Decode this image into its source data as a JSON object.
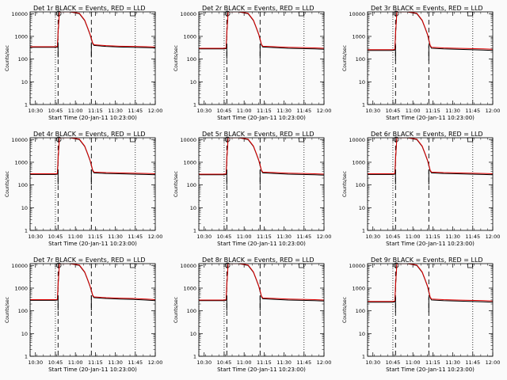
{
  "figure": {
    "xlabel": "Start Time (20-Jan-11 10:23:00)",
    "ylabel": "Counts/sec"
  },
  "chart_data": {
    "type": "line",
    "layout": {
      "rows": 3,
      "cols": 3
    },
    "title_suffix": " BLACK = Events, RED = LLD",
    "xlabel": "Start Time (20-Jan-11 10:23:00)",
    "ylabel": "Counts/sec",
    "x_unit": "minutes after 10:23:00",
    "xlim": [
      3,
      97
    ],
    "xticks": [
      7,
      22,
      37,
      52,
      67,
      82,
      97
    ],
    "xtick_labels": [
      "10:30",
      "10:45",
      "11:00",
      "11:15",
      "11:30",
      "11:45",
      "12:00"
    ],
    "y_scale": "log",
    "ylim": [
      1,
      12000
    ],
    "yticks": [
      1,
      10,
      100,
      1000,
      10000
    ],
    "ytick_labels": [
      "1",
      "10",
      "100",
      "1000",
      "10000"
    ],
    "grid": false,
    "dotted_vlines_x": [
      3,
      22,
      82
    ],
    "dashed_vlines_x": [
      24,
      49
    ],
    "series_colors": {
      "events": "#000000",
      "lld": "#e00000"
    },
    "panels": [
      {
        "title": "Det 1r",
        "baseline": 340,
        "x": [
          3,
          22,
          23.5,
          24,
          25,
          28,
          33,
          40,
          44,
          46,
          48,
          49.5,
          50,
          51,
          60,
          70,
          80,
          90,
          97
        ],
        "events": [
          330,
          330,
          340,
          1400,
          12000,
          12000,
          12000,
          10000,
          5000,
          2500,
          1200,
          600,
          480,
          400,
          360,
          340,
          330,
          320,
          310
        ],
        "lld": [
          350,
          350,
          360,
          1500,
          12000,
          12000,
          12000,
          10500,
          5200,
          2600,
          1250,
          650,
          510,
          430,
          390,
          370,
          360,
          350,
          340
        ]
      },
      {
        "title": "Det 2r",
        "baseline": 290,
        "x": [
          3,
          22,
          23.5,
          24,
          25,
          28,
          33,
          40,
          44,
          46,
          48,
          49.5,
          50,
          51,
          60,
          70,
          80,
          90,
          97
        ],
        "events": [
          280,
          280,
          290,
          1300,
          12000,
          12000,
          12000,
          10000,
          5000,
          2500,
          1200,
          550,
          420,
          340,
          320,
          300,
          290,
          280,
          270
        ],
        "lld": [
          300,
          300,
          310,
          1400,
          12000,
          12000,
          12000,
          10500,
          5200,
          2600,
          1250,
          600,
          450,
          370,
          350,
          330,
          320,
          310,
          300
        ]
      },
      {
        "title": "Det 3r",
        "baseline": 250,
        "x": [
          3,
          22,
          23.5,
          24,
          25,
          28,
          33,
          40,
          44,
          46,
          48,
          49.5,
          50,
          51,
          60,
          70,
          80,
          90,
          97
        ],
        "events": [
          240,
          240,
          250,
          1200,
          12000,
          12000,
          12000,
          10000,
          5000,
          2500,
          1200,
          500,
          380,
          300,
          280,
          270,
          260,
          250,
          240
        ],
        "lld": [
          260,
          260,
          270,
          1300,
          12000,
          12000,
          12000,
          10500,
          5200,
          2600,
          1250,
          550,
          410,
          330,
          310,
          300,
          290,
          280,
          270
        ]
      },
      {
        "title": "Det 4r",
        "baseline": 300,
        "x": [
          3,
          22,
          23.5,
          24,
          25,
          28,
          33,
          40,
          44,
          46,
          48,
          49.5,
          50,
          51,
          60,
          70,
          80,
          90,
          97
        ],
        "events": [
          290,
          290,
          300,
          1300,
          12000,
          12000,
          12000,
          10000,
          5000,
          2500,
          1200,
          550,
          420,
          340,
          320,
          310,
          300,
          290,
          280
        ],
        "lld": [
          310,
          310,
          320,
          1400,
          12000,
          12000,
          12000,
          10500,
          5200,
          2600,
          1250,
          600,
          450,
          370,
          350,
          340,
          330,
          320,
          310
        ]
      },
      {
        "title": "Det 5r",
        "baseline": 290,
        "x": [
          3,
          22,
          23.5,
          24,
          25,
          28,
          33,
          40,
          44,
          46,
          48,
          49.5,
          50,
          51,
          60,
          70,
          80,
          90,
          97
        ],
        "events": [
          280,
          280,
          290,
          1300,
          12000,
          12000,
          12000,
          10000,
          5000,
          2500,
          1200,
          550,
          420,
          340,
          320,
          300,
          290,
          280,
          270
        ],
        "lld": [
          300,
          300,
          310,
          1400,
          12000,
          12000,
          12000,
          10500,
          5200,
          2600,
          1250,
          600,
          450,
          370,
          350,
          330,
          320,
          310,
          300
        ]
      },
      {
        "title": "Det 6r",
        "baseline": 300,
        "x": [
          3,
          22,
          23.5,
          24,
          25,
          28,
          33,
          40,
          44,
          46,
          48,
          49.5,
          50,
          51,
          60,
          70,
          80,
          90,
          97
        ],
        "events": [
          290,
          290,
          300,
          1300,
          12000,
          12000,
          12000,
          10000,
          5000,
          2500,
          1200,
          550,
          420,
          340,
          320,
          310,
          300,
          290,
          280
        ],
        "lld": [
          310,
          310,
          320,
          1400,
          12000,
          12000,
          12000,
          10500,
          5200,
          2600,
          1250,
          600,
          450,
          370,
          350,
          340,
          330,
          320,
          310
        ]
      },
      {
        "title": "Det 7r",
        "baseline": 300,
        "x": [
          3,
          22,
          23.5,
          24,
          25,
          28,
          33,
          40,
          44,
          46,
          48,
          49.5,
          50,
          51,
          60,
          70,
          80,
          90,
          97
        ],
        "events": [
          290,
          290,
          300,
          1300,
          12000,
          12000,
          12000,
          10000,
          5000,
          2500,
          1200,
          600,
          460,
          380,
          350,
          330,
          320,
          300,
          280
        ],
        "lld": [
          310,
          310,
          320,
          1400,
          12000,
          12000,
          12000,
          10500,
          5200,
          2600,
          1250,
          650,
          490,
          410,
          380,
          360,
          350,
          330,
          310
        ]
      },
      {
        "title": "Det 8r",
        "baseline": 290,
        "x": [
          3,
          22,
          23.5,
          24,
          25,
          28,
          33,
          40,
          44,
          46,
          48,
          49.5,
          50,
          51,
          60,
          70,
          80,
          90,
          97
        ],
        "events": [
          280,
          280,
          290,
          1300,
          12000,
          12000,
          12000,
          10000,
          5000,
          2500,
          1200,
          550,
          420,
          340,
          320,
          300,
          290,
          280,
          270
        ],
        "lld": [
          300,
          300,
          310,
          1400,
          12000,
          12000,
          12000,
          10500,
          5200,
          2600,
          1250,
          600,
          450,
          370,
          350,
          330,
          320,
          310,
          300
        ]
      },
      {
        "title": "Det 9r",
        "baseline": 250,
        "x": [
          3,
          22,
          23.5,
          24,
          25,
          28,
          33,
          40,
          44,
          46,
          48,
          49.5,
          50,
          51,
          60,
          70,
          80,
          90,
          97
        ],
        "events": [
          240,
          240,
          250,
          1200,
          12000,
          12000,
          12000,
          10000,
          5000,
          2500,
          1200,
          500,
          380,
          300,
          280,
          270,
          260,
          250,
          240
        ],
        "lld": [
          260,
          260,
          270,
          1300,
          12000,
          12000,
          12000,
          10500,
          5200,
          2600,
          1250,
          550,
          410,
          330,
          310,
          300,
          290,
          280,
          270
        ]
      }
    ]
  }
}
